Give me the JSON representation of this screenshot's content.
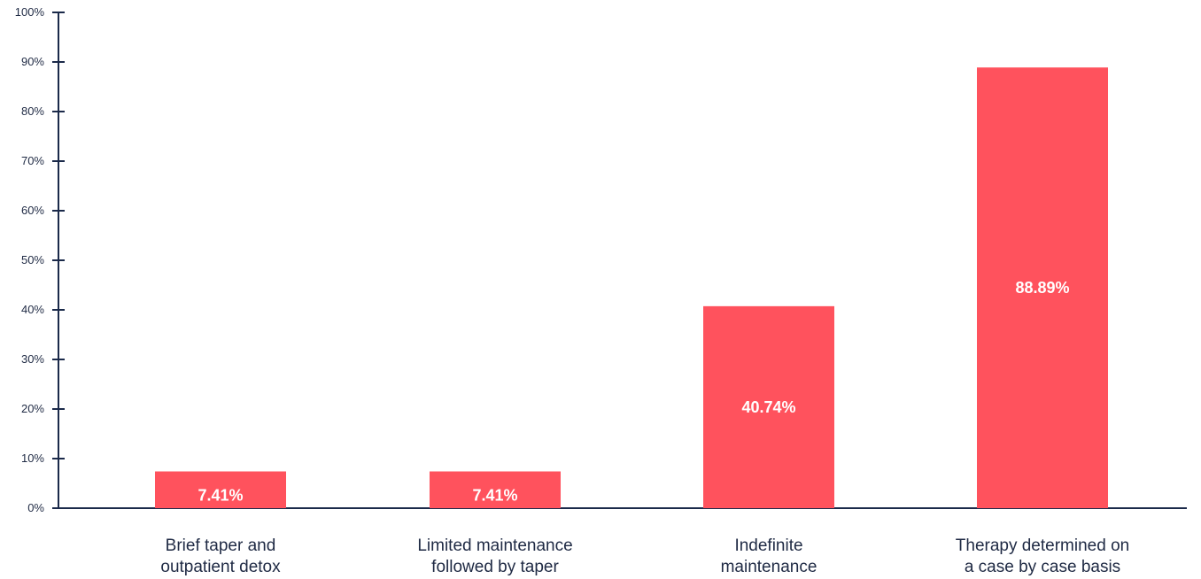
{
  "chart_data": {
    "type": "bar",
    "categories": [
      [
        "Brief taper and",
        "outpatient detox"
      ],
      [
        "Limited maintenance",
        "followed by taper"
      ],
      [
        "Indefinite",
        "maintenance"
      ],
      [
        "Therapy determined on",
        "a case by case basis"
      ]
    ],
    "values": [
      7.41,
      7.41,
      40.74,
      88.89
    ],
    "data_labels": [
      "7.41%",
      "7.41%",
      "40.74%",
      "88.89%"
    ],
    "title": "",
    "xlabel": "",
    "ylabel": "",
    "ylim": [
      0,
      100
    ],
    "y_ticks": [
      "0%",
      "10%",
      "20%",
      "30%",
      "40%",
      "50%",
      "60%",
      "70%",
      "80%",
      "90%",
      "100%"
    ],
    "grid": false,
    "legend": "none",
    "colors": {
      "bar": "#ff525d",
      "axis": "#1b2a4a",
      "text": "#1f2a44",
      "bar_label": "#ffffff"
    }
  }
}
